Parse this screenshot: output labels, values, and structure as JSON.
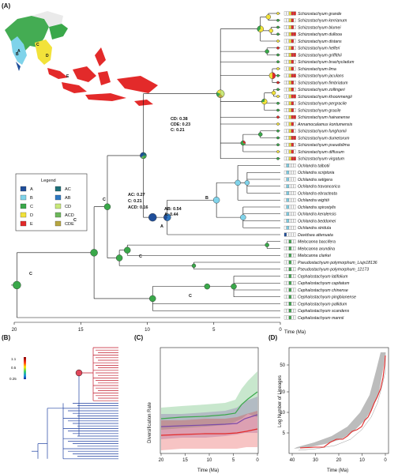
{
  "panels": {
    "a": "(A)",
    "b": "(B)",
    "c": "(C)",
    "d": "(D)"
  },
  "map_labels": [
    "A",
    "B",
    "C",
    "D",
    "E"
  ],
  "legend": {
    "title": "Legend",
    "items": [
      {
        "code": "A",
        "color": "#1f4e9a"
      },
      {
        "code": "AC",
        "color": "#1d6f78"
      },
      {
        "code": "B",
        "color": "#7fd3ea"
      },
      {
        "code": "AB",
        "color": "#2e78c2"
      },
      {
        "code": "C",
        "color": "#3aa84a"
      },
      {
        "code": "CD",
        "color": "#c8e87a"
      },
      {
        "code": "D",
        "color": "#f2e23a"
      },
      {
        "code": "ACD",
        "color": "#6cb85a"
      },
      {
        "code": "E",
        "color": "#e32a2a"
      },
      {
        "code": "CDE",
        "color": "#b7a640"
      }
    ]
  },
  "species": [
    "Schizostachyum grande",
    "Schizostachyum kerrianum",
    "Schizostachyum blumei",
    "Schizostachyum dullooa",
    "Schizostachyum distans",
    "Schizostachyum helferi",
    "Schizostachyum griffithii",
    "Schizostachyum brachycladum",
    "Schizostachyum lima",
    "Schizostachyum jaculans",
    "Schizostachyum fimbriatum",
    "Schizostachyum zollingeri",
    "Schizostachyum khoonmengii",
    "Schizostachyum pergracile",
    "Schizostachyum gracile",
    "Schizostachyum hainanense",
    "Annamocalamus kontumensis",
    "Schizostachyum funghomii",
    "Schizostachyum dumetorum",
    "Schizostachyum pseudolima",
    "Schizostachyum diffusum",
    "Schizostachyum virgatum",
    "Ochlandra talbotii",
    "Ochlandra scriptoria",
    "Ochlandra setigera",
    "Ochlandra travancorica",
    "Ochlandra ebracteata",
    "Ochlandra wightii",
    "Ochlandra spirostylis",
    "Ochlandra keralensis",
    "Ochlandra beddomei",
    "Ochlandra stridula",
    "Davidsea attenuata",
    "Melocanna baccifera",
    "Melocanna arundina",
    "Melocanna clarkei",
    "Pseudostachyum polymorphum_Liujx18136",
    "Pseudostachyum polymorphum_12173",
    "Cephalostachyum latifolium",
    "Cephalostachyum capitatum",
    "Cephalostachyum chinense",
    "Cephalostachyum pingbianense",
    "Cephalostachyum pallidum",
    "Cephalostachyum scandens",
    "Cephalostachyum mannii"
  ],
  "node_annotations": {
    "cd_group": [
      "CD: 0.38",
      "CDE: 0.23",
      "C: 0.21"
    ],
    "ac_group": [
      "AC: 0.27",
      "C: 0.21",
      "ACD: 0.16"
    ],
    "ab_group": [
      "AB: 0.54",
      "A: 0.44"
    ],
    "clade_labels": [
      "B",
      "A",
      "C",
      "C",
      "C",
      "C",
      "C"
    ]
  },
  "time_axis": {
    "ticks": [
      "20",
      "15",
      "10",
      "5",
      "0"
    ],
    "label": "Time (Ma)"
  },
  "panel_b_scale": [
    "1.1",
    "0.5",
    "0.25"
  ],
  "panel_c": {
    "ylabel": "Diversification Rate",
    "xlabel": "Time (Ma)",
    "xticks": [
      "20",
      "15",
      "10",
      "5",
      "0"
    ],
    "series_colors": {
      "top": "#3aa84a",
      "middle": "#7b4aa8",
      "bottom": "#e32a2a"
    }
  },
  "panel_d": {
    "ylabel": "Log Number of Lineages",
    "xlabel": "Time (Ma)",
    "xticks": [
      "40",
      "30",
      "20",
      "10",
      "0"
    ],
    "yticks": [
      "5",
      "10",
      "20",
      "50"
    ]
  }
}
